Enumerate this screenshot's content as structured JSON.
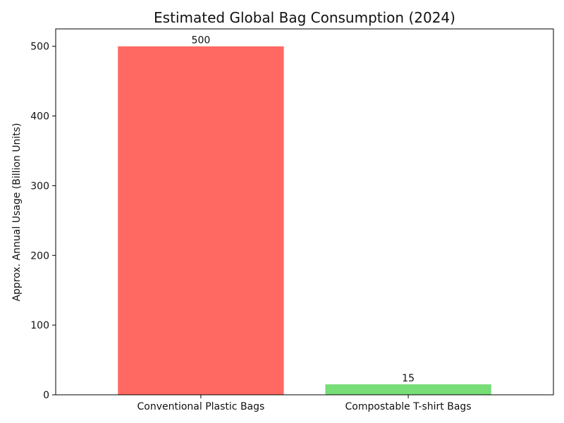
{
  "chart_data": {
    "type": "bar",
    "title": "Estimated Global Bag Consumption (2024)",
    "xlabel": "",
    "ylabel": "Approx. Annual Usage (Billion Units)",
    "categories": [
      "Conventional Plastic Bags",
      "Compostable T-shirt Bags"
    ],
    "values": [
      500,
      15
    ],
    "data_labels": [
      "500",
      "15"
    ],
    "colors": [
      "#ff6961",
      "#77dd77"
    ],
    "ylim": [
      0,
      525
    ],
    "yticks": [
      0,
      100,
      200,
      300,
      400,
      500
    ],
    "ytick_labels": [
      "0",
      "100",
      "200",
      "300",
      "400",
      "500"
    ],
    "grid": false,
    "legend": "none"
  }
}
